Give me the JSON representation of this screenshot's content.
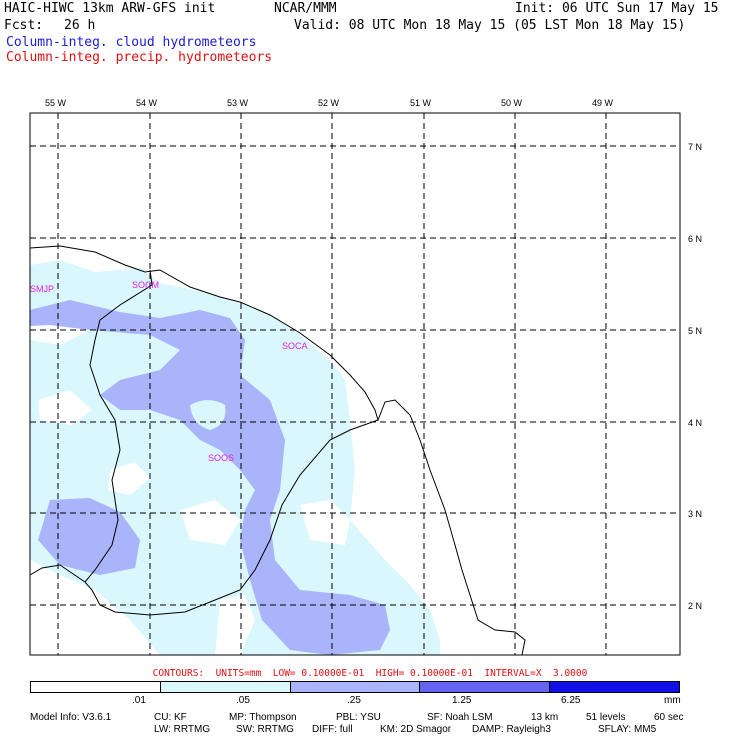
{
  "header": {
    "model_title": "HAIC-HIWC 13km ARW-GFS init",
    "org": "NCAR/MMM",
    "init": "Init: 06 UTC Sun 17 May 15",
    "fcst_label": "Fcst:",
    "fcst_value": "26 h",
    "valid": "Valid: 08 UTC Mon 18 May 15 (05 LST Mon 18 May 15)",
    "field1": "Column-integ. cloud hydrometeors",
    "field2": "Column-integ. precip. hydrometeors"
  },
  "axes": {
    "lon_labels": [
      "55 W",
      "54 W",
      "53 W",
      "52 W",
      "51 W",
      "50 W",
      "49 W"
    ],
    "lat_labels": [
      "7 N",
      "6 N",
      "5 N",
      "4 N",
      "3 N",
      "2 N"
    ]
  },
  "stations": [
    "SMJP",
    "SOCM",
    "SOCA",
    "SOOS"
  ],
  "contours_text": "CONTOURS:  UNITS=mm  LOW= 0.10000E-01  HIGH= 0.10000E-01  INTERVAL=X  3.0000",
  "legend": {
    "ticks": [
      ".01",
      ".05",
      ".25",
      "1.25",
      "6.25"
    ],
    "units": "mm",
    "colors": [
      "#ffffff",
      "#d9f7fc",
      "#aab4fa",
      "#6464f0",
      "#1010e6"
    ]
  },
  "model_info": {
    "line1": [
      "Model Info: V3.6.1",
      "CU: KF",
      "MP: Thompson",
      "PBL: YSU",
      "SF: Noah LSM",
      "13 km",
      "51 levels",
      "60 sec"
    ],
    "line2": [
      "LW: RRTMG",
      "SW: RRTMG",
      "DIFF: full",
      "KM: 2D Smagor",
      "DAMP: Rayleigh3",
      "SFLAY: MM5"
    ]
  },
  "colors": {
    "cloud_text": "#1c1ccf",
    "precip_text": "#e01010",
    "station_text": "#e020e0"
  }
}
